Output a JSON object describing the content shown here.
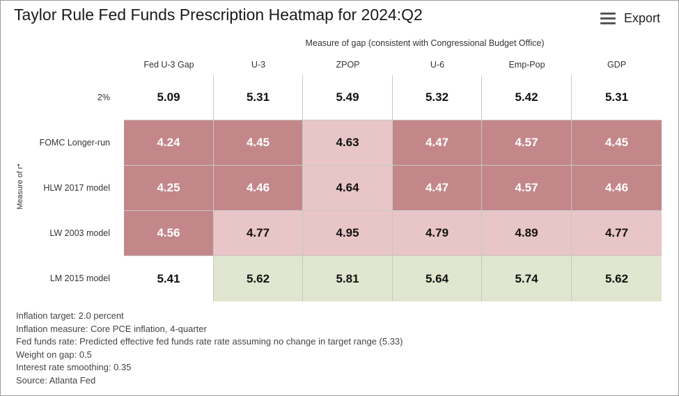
{
  "title": "Taylor Rule Fed Funds Prescription Heatmap for 2024:Q2",
  "export_label": "Export",
  "icons": {
    "menu": "hamburger-menu-icon"
  },
  "colors": {
    "dark": "#c3878a",
    "light": "#e8c5c6",
    "green": "#e0e6cf",
    "white": "#ffffff"
  },
  "chart_data": {
    "type": "heatmap",
    "title": "Taylor Rule Fed Funds Prescription Heatmap for 2024:Q2",
    "xlabel": "Measure of gap (consistent with Congressional Budget Office)",
    "ylabel": "Measure of r*",
    "columns": [
      "Fed U-3 Gap",
      "U-3",
      "ZPOP",
      "U-6",
      "Emp-Pop",
      "GDP"
    ],
    "rows": [
      "2%",
      "FOMC Longer-run",
      "HLW 2017 model",
      "LW 2003 model",
      "LM 2015 model"
    ],
    "values": [
      [
        "5.09",
        "5.31",
        "5.49",
        "5.32",
        "5.42",
        "5.31"
      ],
      [
        "4.24",
        "4.45",
        "4.63",
        "4.47",
        "4.57",
        "4.45"
      ],
      [
        "4.25",
        "4.46",
        "4.64",
        "4.47",
        "4.57",
        "4.46"
      ],
      [
        "4.56",
        "4.77",
        "4.95",
        "4.79",
        "4.89",
        "4.77"
      ],
      [
        "5.41",
        "5.62",
        "5.81",
        "5.64",
        "5.74",
        "5.62"
      ]
    ],
    "shading": [
      [
        "white",
        "white",
        "white",
        "white",
        "white",
        "white"
      ],
      [
        "dark",
        "dark",
        "light",
        "dark",
        "dark",
        "dark"
      ],
      [
        "dark",
        "dark",
        "light",
        "dark",
        "dark",
        "dark"
      ],
      [
        "dark",
        "light",
        "light",
        "light",
        "light",
        "light"
      ],
      [
        "white",
        "green",
        "green",
        "green",
        "green",
        "green"
      ]
    ]
  },
  "footnotes": [
    "Inflation target: 2.0 percent",
    "Inflation measure: Core PCE inflation, 4-quarter",
    "Fed funds rate: Predicted effective fed funds rate rate assuming no change in target range (5.33)",
    "Weight on gap: 0.5",
    "Interest rate smoothing: 0.35",
    "Source: Atlanta Fed"
  ]
}
